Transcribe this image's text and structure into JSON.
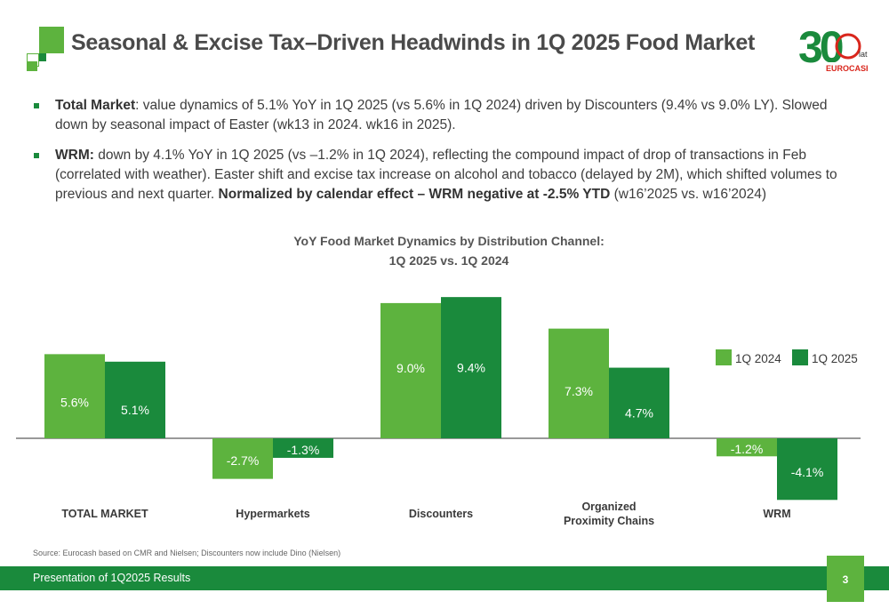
{
  "header": {
    "title": "Seasonal & Excise Tax–Driven Headwinds in 1Q 2025 Food Market",
    "brand_number": "30",
    "brand_suffix": "lat",
    "brand_name": "EUROCASH"
  },
  "bullets": [
    {
      "bold": "Total Market",
      "text": ": value dynamics of 5.1% YoY in 1Q 2025 (vs 5.6% in 1Q 2024) driven by Discounters (9.4% vs 9.0% LY). Slowed down by seasonal impact of Easter (wk13 in 2024. wk16 in 2025)."
    },
    {
      "bold": "WRM:",
      "text": " down by 4.1% YoY in 1Q 2025 (vs –1.2% in 1Q 2024), reflecting the compound impact of drop of transactions in Feb (correlated with weather). Easter shift and excise tax increase on alcohol and tobacco (delayed by 2M), which shifted volumes to previous and next quarter. ",
      "bold2": "Normalized by calendar effect – WRM negative at -2.5% YTD",
      "text2": " (w16’2025 vs. w16’2024)"
    }
  ],
  "chart_data": {
    "type": "bar",
    "title": "YoY Food Market Dynamics by Distribution Channel:",
    "subtitle": "1Q 2025 vs. 1Q 2024",
    "categories": [
      "TOTAL MARKET",
      "Hypermarkets",
      "Discounters",
      "Organized\nProximity Chains",
      "WRM"
    ],
    "series": [
      {
        "name": "1Q 2024",
        "values": [
          5.6,
          -2.7,
          9.0,
          7.3,
          -1.2
        ],
        "labels": [
          "5.6%",
          "-2.7%",
          "9.0%",
          "7.3%",
          "-1.2%"
        ],
        "color": "#5db33e"
      },
      {
        "name": "1Q 2025",
        "values": [
          5.1,
          -1.3,
          9.4,
          4.7,
          -4.1
        ],
        "labels": [
          "5.1%",
          "-1.3%",
          "9.4%",
          "4.7%",
          "-4.1%"
        ],
        "color": "#1a8a3c"
      }
    ],
    "ylim": [
      -6,
      10
    ],
    "legend": "top-right",
    "grid": false
  },
  "footer": {
    "source": "Source: Eurocash based on CMR and Nielsen; Discounters now include Dino (Nielsen)",
    "presentation": "Presentation of 1Q2025 Results",
    "page": "3"
  },
  "colors": {
    "accent": "#5db33e",
    "dark": "#1a8a3c",
    "brand_red": "#d9261c"
  }
}
